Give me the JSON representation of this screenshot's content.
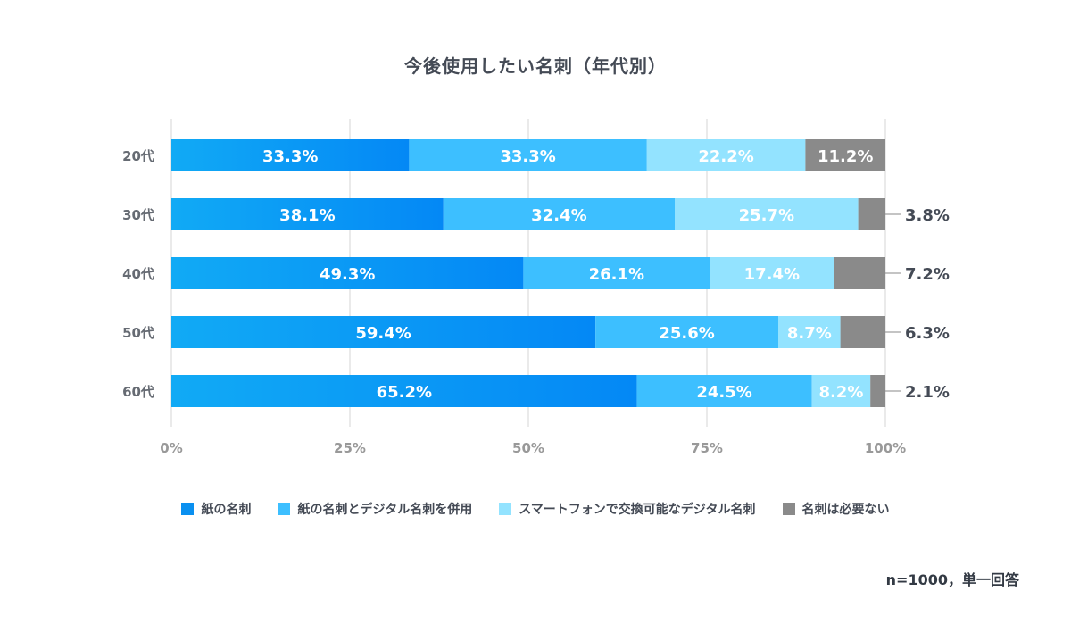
{
  "chart_data": {
    "type": "bar",
    "orientation": "horizontal",
    "stacked": true,
    "title": "今後使用したい名刺（年代別）",
    "categories": [
      "20代",
      "30代",
      "40代",
      "50代",
      "60代"
    ],
    "series": [
      {
        "name": "紙の名刺",
        "values": [
          33.3,
          38.1,
          49.3,
          59.4,
          65.2
        ],
        "color": "#0a90f0"
      },
      {
        "name": "紙の名刺とデジタル名刺を併用",
        "values": [
          33.3,
          32.4,
          26.1,
          25.6,
          24.5
        ],
        "color": "#3dbfff"
      },
      {
        "name": "スマートフォンで交換可能なデジタル名刺",
        "values": [
          22.2,
          25.7,
          17.4,
          8.7,
          8.2
        ],
        "color": "#93e3ff"
      },
      {
        "name": "名刺は必要ない",
        "values": [
          11.2,
          3.8,
          7.2,
          6.3,
          2.1
        ],
        "color": "#8a8a8a"
      }
    ],
    "value_labels": [
      [
        "33.3%",
        "33.3%",
        "22.2%",
        "11.2%"
      ],
      [
        "38.1%",
        "32.4%",
        "25.7%",
        "3.8%"
      ],
      [
        "49.3%",
        "26.1%",
        "17.4%",
        "7.2%"
      ],
      [
        "59.4%",
        "25.6%",
        "8.7%",
        "6.3%"
      ],
      [
        "65.2%",
        "24.5%",
        "8.2%",
        "2.1%"
      ]
    ],
    "outside_label": [
      false,
      true,
      true,
      true,
      true
    ],
    "xlim": [
      0,
      100
    ],
    "xticks": [
      0,
      25,
      50,
      75,
      100
    ],
    "xtick_labels": [
      "0%",
      "25%",
      "50%",
      "75%",
      "100%"
    ],
    "grid": true,
    "legend_position": "bottom"
  },
  "footnote": "n=1000，単一回答"
}
